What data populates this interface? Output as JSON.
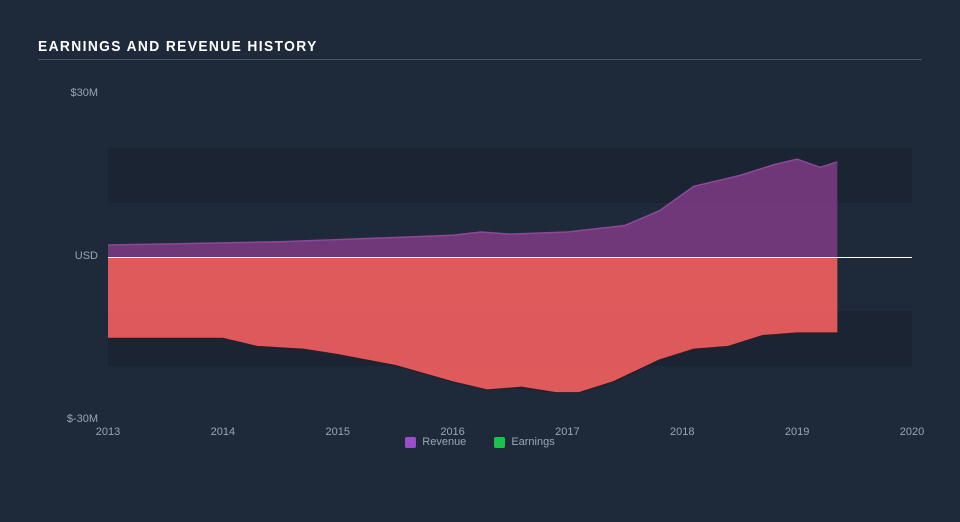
{
  "title": "EARNINGS AND REVENUE HISTORY",
  "chart": {
    "type": "area",
    "background_color": "#1e2a3a",
    "band_color": "rgba(0,0,0,0.13)",
    "zero_line_color": "#ffffff",
    "text_color": "#9aa4b3",
    "title_color": "#ffffff",
    "title_fontsize": 15,
    "label_fontsize": 11,
    "xlim": [
      2013,
      2020
    ],
    "ylim": [
      -30,
      30
    ],
    "y_tick_lines": [
      -20,
      -10,
      10,
      20
    ],
    "y_ticks": [
      {
        "value": -30,
        "label": "$-30M"
      },
      {
        "value": 0,
        "label": "USD"
      },
      {
        "value": 30,
        "label": "$30M"
      }
    ],
    "x_ticks": [
      {
        "value": 2013,
        "label": "2013"
      },
      {
        "value": 2014,
        "label": "2014"
      },
      {
        "value": 2015,
        "label": "2015"
      },
      {
        "value": 2016,
        "label": "2016"
      },
      {
        "value": 2017,
        "label": "2017"
      },
      {
        "value": 2018,
        "label": "2018"
      },
      {
        "value": 2019,
        "label": "2019"
      },
      {
        "value": 2020,
        "label": "2020"
      }
    ],
    "series": [
      {
        "name": "Revenue",
        "fill_color": "#7a3a82",
        "fill_opacity": 0.88,
        "stroke_color": "#8a4a94",
        "legend_swatch": "#9b4dca",
        "points": [
          {
            "x": 2013.0,
            "y": 2.2
          },
          {
            "x": 2013.5,
            "y": 2.4
          },
          {
            "x": 2014.0,
            "y": 2.6
          },
          {
            "x": 2014.5,
            "y": 2.8
          },
          {
            "x": 2015.0,
            "y": 3.2
          },
          {
            "x": 2015.5,
            "y": 3.6
          },
          {
            "x": 2016.0,
            "y": 4.0
          },
          {
            "x": 2016.25,
            "y": 4.6
          },
          {
            "x": 2016.5,
            "y": 4.2
          },
          {
            "x": 2017.0,
            "y": 4.6
          },
          {
            "x": 2017.5,
            "y": 5.8
          },
          {
            "x": 2017.8,
            "y": 8.5
          },
          {
            "x": 2018.1,
            "y": 13.0
          },
          {
            "x": 2018.5,
            "y": 15.0
          },
          {
            "x": 2018.8,
            "y": 17.0
          },
          {
            "x": 2019.0,
            "y": 18.0
          },
          {
            "x": 2019.2,
            "y": 16.5
          },
          {
            "x": 2019.35,
            "y": 17.5
          }
        ]
      },
      {
        "name": "Earnings",
        "fill_color": "#ef5e5e",
        "fill_opacity": 0.92,
        "stroke_color": "#2a1e28",
        "legend_swatch": "#19c24a",
        "points": [
          {
            "x": 2013.0,
            "y": -15.0
          },
          {
            "x": 2013.5,
            "y": -15.0
          },
          {
            "x": 2014.0,
            "y": -15.0
          },
          {
            "x": 2014.3,
            "y": -16.5
          },
          {
            "x": 2014.7,
            "y": -17.0
          },
          {
            "x": 2015.0,
            "y": -18.0
          },
          {
            "x": 2015.5,
            "y": -20.0
          },
          {
            "x": 2016.0,
            "y": -23.0
          },
          {
            "x": 2016.3,
            "y": -24.5
          },
          {
            "x": 2016.6,
            "y": -24.0
          },
          {
            "x": 2016.9,
            "y": -25.0
          },
          {
            "x": 2017.1,
            "y": -25.0
          },
          {
            "x": 2017.4,
            "y": -23.0
          },
          {
            "x": 2017.8,
            "y": -19.0
          },
          {
            "x": 2018.1,
            "y": -17.0
          },
          {
            "x": 2018.4,
            "y": -16.5
          },
          {
            "x": 2018.7,
            "y": -14.5
          },
          {
            "x": 2019.0,
            "y": -14.0
          },
          {
            "x": 2019.35,
            "y": -14.0
          }
        ]
      }
    ],
    "legend_position": "bottom-center"
  }
}
